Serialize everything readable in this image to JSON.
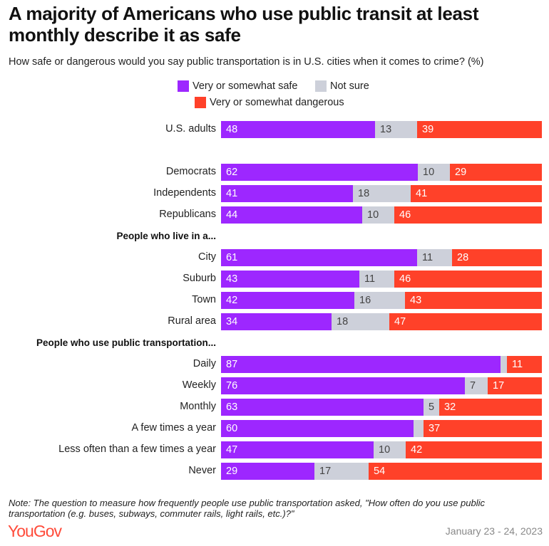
{
  "title": "A majority of Americans who use public transit at least monthly describe it as safe",
  "subtitle": "How safe or dangerous would you say public transportation is in U.S. cities when it comes to crime? (%)",
  "note": "Note: The question to measure how frequently people use public transportation asked, \"How often do you use public transportation (e.g. buses, subways, commuter rails, light rails, etc.)?\"",
  "logo": "YouGov",
  "date": "January 23 - 24, 2023",
  "colors": {
    "safe": "#9d27ff",
    "not_sure": "#cdd0da",
    "dangerous": "#ff4129"
  },
  "chart_data": {
    "type": "bar",
    "stacked": true,
    "orientation": "horizontal",
    "xlim": [
      0,
      100
    ],
    "legend": [
      {
        "name": "Very or somewhat safe"
      },
      {
        "name": "Not sure"
      },
      {
        "name": "Very or somewhat dangerous"
      }
    ],
    "groups": [
      {
        "header": "",
        "rows": [
          {
            "label": "U.S. adults",
            "values": [
              48,
              13,
              39
            ]
          }
        ]
      },
      {
        "header": "",
        "rows": [
          {
            "label": "Democrats",
            "values": [
              62,
              10,
              29
            ]
          },
          {
            "label": "Independents",
            "values": [
              41,
              18,
              41
            ]
          },
          {
            "label": "Republicans",
            "values": [
              44,
              10,
              46
            ]
          }
        ]
      },
      {
        "header": "People who live in a...",
        "rows": [
          {
            "label": "City",
            "values": [
              61,
              11,
              28
            ]
          },
          {
            "label": "Suburb",
            "values": [
              43,
              11,
              46
            ]
          },
          {
            "label": "Town",
            "values": [
              42,
              16,
              43
            ]
          },
          {
            "label": "Rural area",
            "values": [
              34,
              18,
              47
            ]
          }
        ]
      },
      {
        "header": "People who use public transportation...",
        "rows": [
          {
            "label": "Daily",
            "values": [
              87,
              2,
              11
            ],
            "hidden_labels": [
              1
            ]
          },
          {
            "label": "Weekly",
            "values": [
              76,
              7,
              17
            ]
          },
          {
            "label": "Monthly",
            "values": [
              63,
              5,
              32
            ]
          },
          {
            "label": "A few times a year",
            "values": [
              60,
              3,
              37
            ],
            "hidden_labels": [
              1
            ]
          },
          {
            "label": "Less often than a few times a year",
            "values": [
              47,
              10,
              42
            ]
          },
          {
            "label": "Never",
            "values": [
              29,
              17,
              54
            ]
          }
        ]
      }
    ]
  }
}
